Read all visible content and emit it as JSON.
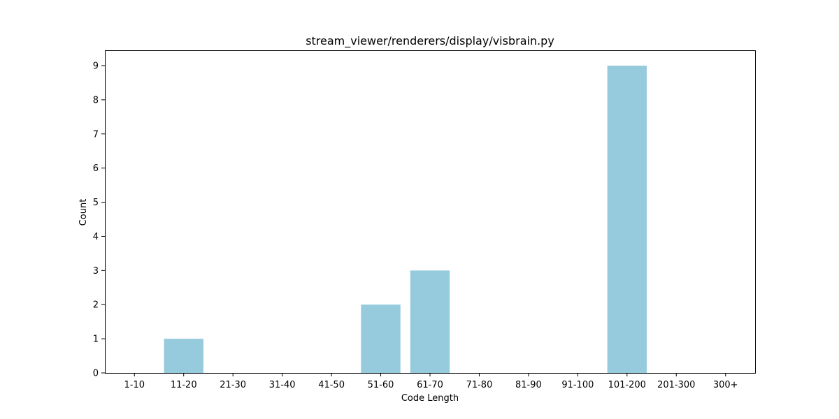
{
  "chart_data": {
    "type": "bar",
    "title": "stream_viewer/renderers/display/visbrain.py",
    "xlabel": "Code Length",
    "ylabel": "Count",
    "categories": [
      "1-10",
      "11-20",
      "21-30",
      "31-40",
      "41-50",
      "51-60",
      "61-70",
      "71-80",
      "81-90",
      "91-100",
      "101-200",
      "201-300",
      "300+"
    ],
    "values": [
      0,
      1,
      0,
      0,
      0,
      2,
      3,
      0,
      0,
      0,
      9,
      0,
      0
    ],
    "ylim": [
      0,
      9.45
    ],
    "yticks": [
      0,
      1,
      2,
      3,
      4,
      5,
      6,
      7,
      8,
      9
    ],
    "grid": false,
    "legend": "none",
    "bar_color": "#96cadd"
  }
}
